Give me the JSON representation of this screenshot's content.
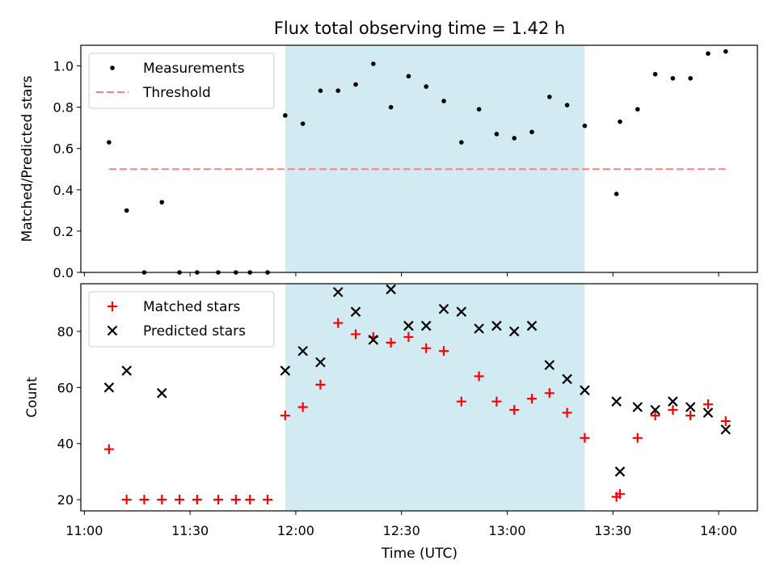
{
  "chart_data": {
    "title": "Flux total observing time = 1.42 h",
    "xlabel": "Time (UTC)",
    "x_ticks": [
      "11:00",
      "11:30",
      "12:00",
      "12:30",
      "13:00",
      "13:30",
      "14:00"
    ],
    "xlim": [
      "10:59",
      "14:11"
    ],
    "highlight_span": [
      "11:57",
      "13:22"
    ],
    "highlight_color": "#add8e6",
    "panels": [
      {
        "type": "scatter",
        "ylabel": "Matched/Predicted stars",
        "ylim": [
          0,
          1.1
        ],
        "y_ticks": [
          "0.0",
          "0.2",
          "0.4",
          "0.6",
          "0.8",
          "1.0"
        ],
        "legend_position": "upper left",
        "series": [
          {
            "name": "Measurements",
            "marker": "dot",
            "color": "#000000",
            "points": [
              [
                "11:07",
                0.63
              ],
              [
                "11:12",
                0.3
              ],
              [
                "11:17",
                0.0
              ],
              [
                "11:22",
                0.34
              ],
              [
                "11:27",
                0.0
              ],
              [
                "11:32",
                0.0
              ],
              [
                "11:38",
                0.0
              ],
              [
                "11:43",
                0.0
              ],
              [
                "11:47",
                0.0
              ],
              [
                "11:52",
                0.0
              ],
              [
                "11:57",
                0.76
              ],
              [
                "12:02",
                0.72
              ],
              [
                "12:07",
                0.88
              ],
              [
                "12:12",
                0.88
              ],
              [
                "12:17",
                0.91
              ],
              [
                "12:22",
                1.01
              ],
              [
                "12:27",
                0.8
              ],
              [
                "12:32",
                0.95
              ],
              [
                "12:37",
                0.9
              ],
              [
                "12:42",
                0.83
              ],
              [
                "12:47",
                0.63
              ],
              [
                "12:52",
                0.79
              ],
              [
                "12:57",
                0.67
              ],
              [
                "13:02",
                0.65
              ],
              [
                "13:07",
                0.68
              ],
              [
                "13:12",
                0.85
              ],
              [
                "13:17",
                0.81
              ],
              [
                "13:22",
                0.71
              ],
              [
                "13:31",
                0.38
              ],
              [
                "13:32",
                0.73
              ],
              [
                "13:37",
                0.79
              ],
              [
                "13:42",
                0.96
              ],
              [
                "13:47",
                0.94
              ],
              [
                "13:52",
                0.94
              ],
              [
                "13:57",
                1.06
              ],
              [
                "14:02",
                1.07
              ]
            ]
          },
          {
            "name": "Threshold",
            "marker": "dashed-line",
            "color": "#ff7f7f",
            "points": [
              [
                "11:07",
                0.5
              ],
              [
                "14:02",
                0.5
              ]
            ]
          }
        ]
      },
      {
        "type": "scatter",
        "ylabel": "Count",
        "ylim": [
          16,
          97
        ],
        "y_ticks": [
          "20",
          "40",
          "60",
          "80"
        ],
        "legend_position": "upper left",
        "series": [
          {
            "name": "Matched stars",
            "marker": "plus",
            "color": "#ff0000",
            "points": [
              [
                "11:07",
                38
              ],
              [
                "11:12",
                20
              ],
              [
                "11:17",
                20
              ],
              [
                "11:22",
                20
              ],
              [
                "11:27",
                20
              ],
              [
                "11:32",
                20
              ],
              [
                "11:38",
                20
              ],
              [
                "11:43",
                20
              ],
              [
                "11:47",
                20
              ],
              [
                "11:52",
                20
              ],
              [
                "11:57",
                50
              ],
              [
                "12:02",
                53
              ],
              [
                "12:07",
                61
              ],
              [
                "12:12",
                83
              ],
              [
                "12:17",
                79
              ],
              [
                "12:22",
                78
              ],
              [
                "12:27",
                76
              ],
              [
                "12:32",
                78
              ],
              [
                "12:37",
                74
              ],
              [
                "12:42",
                73
              ],
              [
                "12:47",
                55
              ],
              [
                "12:52",
                64
              ],
              [
                "12:57",
                55
              ],
              [
                "13:02",
                52
              ],
              [
                "13:07",
                56
              ],
              [
                "13:12",
                58
              ],
              [
                "13:17",
                51
              ],
              [
                "13:22",
                42
              ],
              [
                "13:31",
                21
              ],
              [
                "13:32",
                22
              ],
              [
                "13:37",
                42
              ],
              [
                "13:42",
                50
              ],
              [
                "13:47",
                52
              ],
              [
                "13:52",
                50
              ],
              [
                "13:57",
                54
              ],
              [
                "14:02",
                48
              ]
            ]
          },
          {
            "name": "Predicted stars",
            "marker": "x",
            "color": "#000000",
            "points": [
              [
                "11:07",
                60
              ],
              [
                "11:12",
                66
              ],
              [
                "11:22",
                58
              ],
              [
                "11:57",
                66
              ],
              [
                "12:02",
                73
              ],
              [
                "12:07",
                69
              ],
              [
                "12:12",
                94
              ],
              [
                "12:17",
                87
              ],
              [
                "12:22",
                77
              ],
              [
                "12:27",
                95
              ],
              [
                "12:32",
                82
              ],
              [
                "12:37",
                82
              ],
              [
                "12:42",
                88
              ],
              [
                "12:47",
                87
              ],
              [
                "12:52",
                81
              ],
              [
                "12:57",
                82
              ],
              [
                "13:02",
                80
              ],
              [
                "13:07",
                82
              ],
              [
                "13:12",
                68
              ],
              [
                "13:17",
                63
              ],
              [
                "13:22",
                59
              ],
              [
                "13:31",
                55
              ],
              [
                "13:32",
                30
              ],
              [
                "13:37",
                53
              ],
              [
                "13:42",
                52
              ],
              [
                "13:47",
                55
              ],
              [
                "13:52",
                53
              ],
              [
                "13:57",
                51
              ],
              [
                "14:02",
                45
              ]
            ]
          }
        ]
      }
    ]
  }
}
